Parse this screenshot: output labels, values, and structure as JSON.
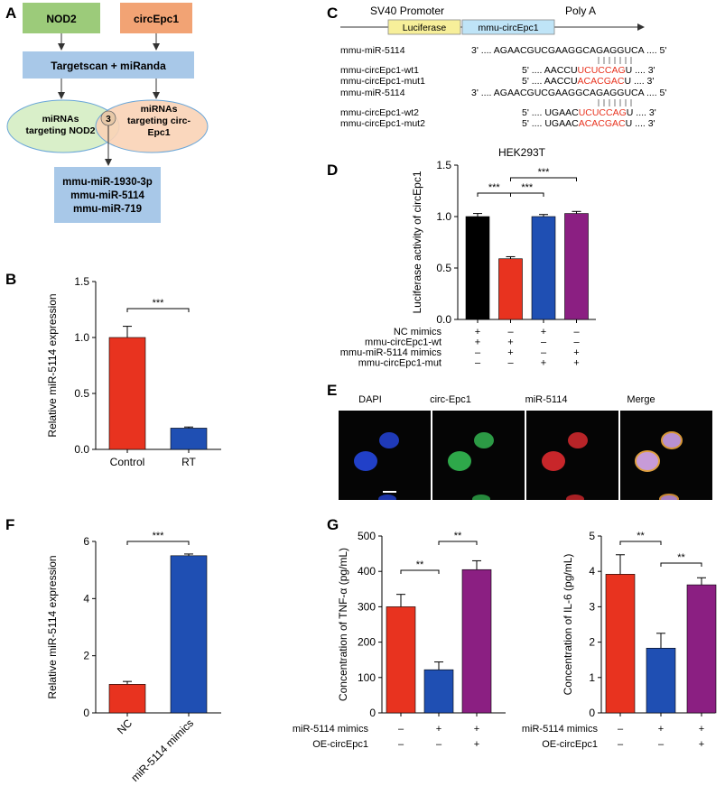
{
  "panel_letters": [
    "A",
    "B",
    "C",
    "D",
    "E",
    "F",
    "G"
  ],
  "colors": {
    "red": "#e8331f",
    "blue": "#1f4fb3",
    "purple": "#8b1f82",
    "black": "#000000",
    "green_box": "#9ccb7a",
    "orange_box": "#f2a374",
    "blue_box": "#a8c8e8",
    "luciferase_box": "#f7ef9a",
    "circ_box": "#bfe4f7",
    "ellipse_green": "#d9efc9",
    "ellipse_orange": "#f9d3b6",
    "mut_text": "#e8331f"
  },
  "panel_a": {
    "box_nod2": "NOD2",
    "box_circ": "circEpc1",
    "box_target": "Targetscan + miRanda",
    "ellipse_left": [
      "miRNAs",
      "targeting NOD2"
    ],
    "ellipse_right": [
      "miRNAs",
      "targeting circ-",
      "Epc1"
    ],
    "overlap_count": "3",
    "results": [
      "mmu-miR-1930-3p",
      "mmu-miR-5114",
      "mmu-miR-719"
    ]
  },
  "panel_c": {
    "promoter": "SV40 Promoter",
    "polya": "Poly A",
    "box_luc": "Luciferase",
    "box_circ": "mmu-circEpc1",
    "rows": [
      {
        "name": "mmu-miR-5114",
        "pre": "3' .... AGAACGUCGAAGGCAGAGGUCA .... 5'",
        "mut": "",
        "post": ""
      },
      {
        "name": "mmu-circEpc1-wt1",
        "pre": "5' .... AACCU",
        "mut": "UCUCCAG",
        "post": "U .... 3'"
      },
      {
        "name": "mmu-circEpc1-mut1",
        "pre": "5' .... AACCU",
        "mut": "ACACGAC",
        "post": "U .... 3'"
      },
      {
        "name": "mmu-miR-5114",
        "pre": "3' .... AGAACGUCGAAGGCAGAGGUCA .... 5'",
        "mut": "",
        "post": ""
      },
      {
        "name": "mmu-circEpc1-wt2",
        "pre": "5' .... UGAAC",
        "mut": "UCUCCAG",
        "post": "U .... 3'"
      },
      {
        "name": "mmu-circEpc1-mut2",
        "pre": "5' .... UGAAC",
        "mut": "ACACGAC",
        "post": "U .... 3'"
      }
    ]
  },
  "panel_e": {
    "labels": [
      "DAPI",
      "circ-Epc1",
      "miR-5114",
      "Merge"
    ]
  },
  "chart_data": [
    {
      "id": "B",
      "type": "bar",
      "categories": [
        "Control",
        "RT"
      ],
      "values": [
        1.0,
        0.19
      ],
      "errors": [
        0.1,
        0.01
      ],
      "colors": [
        "#e8331f",
        "#1f4fb3"
      ],
      "ylabel": "Relative miR-5114 expression",
      "ylim": [
        0,
        1.5
      ],
      "yticks": [
        "0.0",
        "0.5",
        "1.0",
        "1.5"
      ],
      "significance": [
        {
          "from": 0,
          "to": 1,
          "label": "***"
        }
      ]
    },
    {
      "id": "D",
      "type": "bar",
      "title": "HEK293T",
      "categories": [
        "",
        "",
        "",
        ""
      ],
      "values": [
        1.0,
        0.59,
        1.0,
        1.03
      ],
      "errors": [
        0.03,
        0.02,
        0.02,
        0.02
      ],
      "colors": [
        "#000000",
        "#e8331f",
        "#1f4fb3",
        "#8b1f82"
      ],
      "ylabel": "Luciferase activity of circEpc1",
      "ylim": [
        0,
        1.5
      ],
      "yticks": [
        "0.0",
        "0.5",
        "1.0",
        "1.5"
      ],
      "significance": [
        {
          "from": 0,
          "to": 1,
          "label": "***",
          "level": 1
        },
        {
          "from": 1,
          "to": 2,
          "label": "***",
          "level": 1
        },
        {
          "from": 1,
          "to": 3,
          "label": "***",
          "level": 2
        }
      ],
      "conditions": [
        {
          "label": "NC mimics",
          "signs": [
            "+",
            "–",
            "+",
            "–"
          ]
        },
        {
          "label": "mmu-circEpc1-wt",
          "signs": [
            "+",
            "+",
            "–",
            "–"
          ]
        },
        {
          "label": "mmu-miR-5114 mimics",
          "signs": [
            "–",
            "+",
            "–",
            "+"
          ]
        },
        {
          "label": "mmu-circEpc1-mut",
          "signs": [
            "–",
            "–",
            "+",
            "+"
          ]
        }
      ]
    },
    {
      "id": "F",
      "type": "bar",
      "categories": [
        "NC",
        "miR-5114 mimics"
      ],
      "values": [
        1.0,
        5.5
      ],
      "errors": [
        0.1,
        0.06
      ],
      "colors": [
        "#e8331f",
        "#1f4fb3"
      ],
      "ylabel": "Relative miR-5114 expression",
      "ylim": [
        0,
        6
      ],
      "yticks": [
        "0",
        "2",
        "4",
        "6"
      ],
      "significance": [
        {
          "from": 0,
          "to": 1,
          "label": "***"
        }
      ]
    },
    {
      "id": "G1",
      "type": "bar",
      "categories": [
        "",
        "",
        ""
      ],
      "values": [
        300,
        122,
        405
      ],
      "errors": [
        35,
        22,
        25
      ],
      "colors": [
        "#e8331f",
        "#1f4fb3",
        "#8b1f82"
      ],
      "ylabel": "Concentration of TNF-α (pg/mL)",
      "ylim": [
        0,
        500
      ],
      "yticks": [
        "0",
        "100",
        "200",
        "300",
        "400",
        "500"
      ],
      "significance": [
        {
          "from": 0,
          "to": 1,
          "label": "**",
          "level": 1
        },
        {
          "from": 1,
          "to": 2,
          "label": "**",
          "level": 2
        }
      ],
      "conditions": [
        {
          "label": "miR-5114 mimics",
          "signs": [
            "–",
            "+",
            "+"
          ]
        },
        {
          "label": "OE-circEpc1",
          "signs": [
            "–",
            "–",
            "+"
          ]
        }
      ]
    },
    {
      "id": "G2",
      "type": "bar",
      "categories": [
        "",
        "",
        ""
      ],
      "values": [
        3.92,
        1.83,
        3.62
      ],
      "errors": [
        0.55,
        0.42,
        0.2
      ],
      "colors": [
        "#e8331f",
        "#1f4fb3",
        "#8b1f82"
      ],
      "ylabel": "Concentration of IL-6 (pg/mL)",
      "ylim": [
        0,
        5
      ],
      "yticks": [
        "0",
        "1",
        "2",
        "3",
        "4",
        "5"
      ],
      "significance": [
        {
          "from": 0,
          "to": 1,
          "label": "**",
          "level": 2
        },
        {
          "from": 1,
          "to": 2,
          "label": "**",
          "level": 1
        }
      ],
      "conditions": [
        {
          "label": "miR-5114 mimics",
          "signs": [
            "–",
            "+",
            "+"
          ]
        },
        {
          "label": "OE-circEpc1",
          "signs": [
            "–",
            "–",
            "+"
          ]
        }
      ]
    }
  ]
}
